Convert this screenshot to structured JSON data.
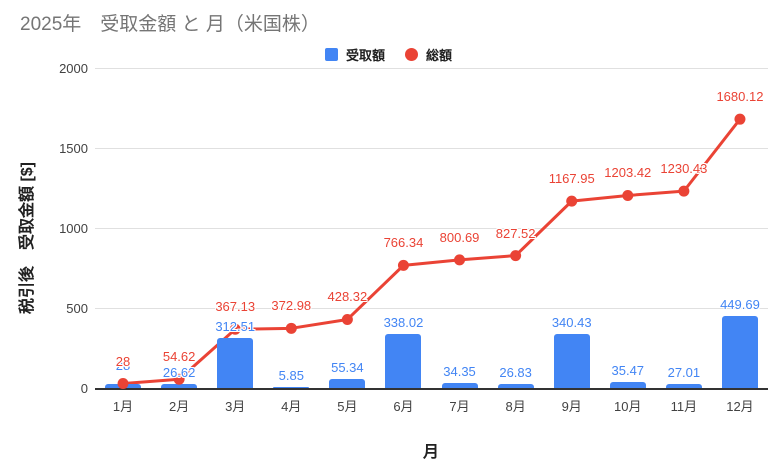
{
  "chart_data": {
    "type": "bar",
    "title": "2025年　受取金額 と 月（米国株）",
    "xlabel": "月",
    "ylabel": "税引後　受取金額 [$]",
    "ylim": [
      0,
      2000
    ],
    "yticks": [
      0,
      500,
      1000,
      1500,
      2000
    ],
    "grid": true,
    "legend_position": "top",
    "categories": [
      "1月",
      "2月",
      "3月",
      "4月",
      "5月",
      "6月",
      "7月",
      "8月",
      "9月",
      "10月",
      "11月",
      "12月"
    ],
    "series": [
      {
        "name": "受取額",
        "type": "bar",
        "color": "#4285F4",
        "values": [
          28,
          26.62,
          312.51,
          5.85,
          55.34,
          338.02,
          34.35,
          26.83,
          340.43,
          35.47,
          27.01,
          449.69
        ],
        "labels": [
          "28",
          "26.62",
          "312.51",
          "5.85",
          "55.34",
          "338.02",
          "34.35",
          "26.83",
          "340.43",
          "35.47",
          "27.01",
          "449.69"
        ]
      },
      {
        "name": "総額",
        "type": "line",
        "color": "#EA4335",
        "values": [
          28,
          54.62,
          367.13,
          372.98,
          428.32,
          766.34,
          800.69,
          827.52,
          1167.95,
          1203.42,
          1230.43,
          1680.12
        ],
        "labels": [
          "28",
          "54.62",
          "367.13",
          "372.98",
          "428.32",
          "766.34",
          "800.69",
          "827.52",
          "1167.95",
          "1203.42",
          "1230.43",
          "1680.12"
        ]
      }
    ]
  },
  "colors": {
    "title": "#757575",
    "axis_line": "#333333",
    "gridline": "#e0e0e0",
    "tick_label": "#424242"
  }
}
